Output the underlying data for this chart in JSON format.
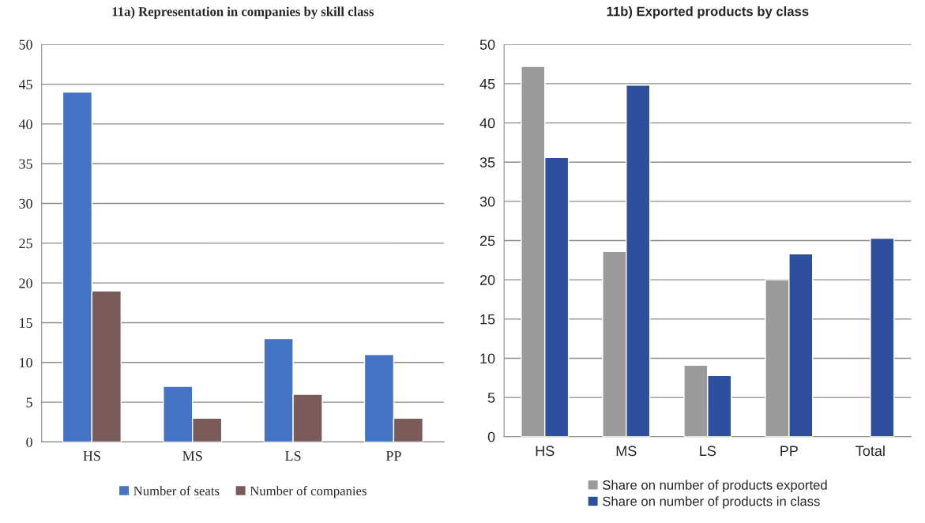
{
  "chart_data": [
    {
      "type": "bar",
      "title": "11a) Representation in companies by skill class",
      "categories": [
        "HS",
        "MS",
        "LS",
        "PP"
      ],
      "series": [
        {
          "name": "Number of seats",
          "color": "#4472c4",
          "values": [
            44,
            7,
            13,
            11
          ]
        },
        {
          "name": "Number of companies",
          "color": "#7b5a5a",
          "values": [
            19,
            3,
            6,
            3
          ]
        }
      ],
      "ylim": [
        0,
        50
      ],
      "yticks": [
        0,
        5,
        10,
        15,
        20,
        25,
        30,
        35,
        40,
        45,
        50
      ],
      "grid": "y",
      "legend": "bottom"
    },
    {
      "type": "bar",
      "title": "11b) Exported products by class",
      "categories": [
        "HS",
        "MS",
        "LS",
        "PP",
        "Total"
      ],
      "series": [
        {
          "name": "Share on number of products exported",
          "color": "#9a9a9a",
          "values": [
            47.2,
            23.6,
            9.1,
            20.0,
            null
          ]
        },
        {
          "name": "Share on number of products in class",
          "color": "#2e4f9e",
          "values": [
            35.6,
            44.8,
            7.8,
            23.3,
            25.3
          ]
        }
      ],
      "ylim": [
        0,
        50
      ],
      "yticks": [
        0,
        5,
        10,
        15,
        20,
        25,
        30,
        35,
        40,
        45,
        50
      ],
      "grid": "y",
      "legend": "bottom"
    }
  ]
}
